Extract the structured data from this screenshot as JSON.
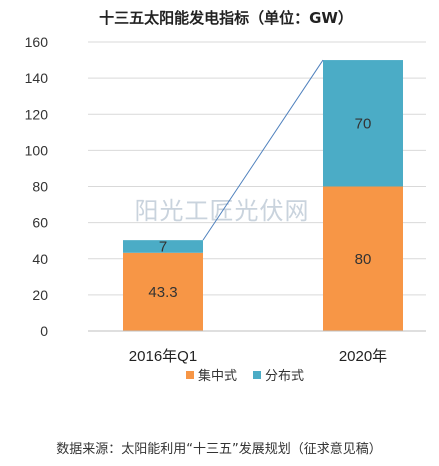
{
  "chart_data": {
    "type": "bar",
    "stacked": true,
    "title": "十三五太阳能发电指标（单位：GW）",
    "categories": [
      "2016年Q1",
      "2020年"
    ],
    "series": [
      {
        "name": "集中式",
        "values": [
          43.3,
          80
        ],
        "color": "#f79646"
      },
      {
        "name": "分布式",
        "values": [
          7,
          70
        ],
        "color": "#4bacc6"
      }
    ],
    "ylim": [
      0,
      160
    ],
    "yticks": [
      0,
      20,
      40,
      60,
      80,
      100,
      120,
      140,
      160
    ],
    "grid": true,
    "legend_position": "bottom",
    "connector_line": true,
    "data_labels": [
      [
        "43.3",
        "7"
      ],
      [
        "80",
        "70"
      ]
    ]
  },
  "watermark": "阳光工匠光伏网",
  "source_note": "数据来源：太阳能利用“十三五”发展规划（征求意见稿）"
}
